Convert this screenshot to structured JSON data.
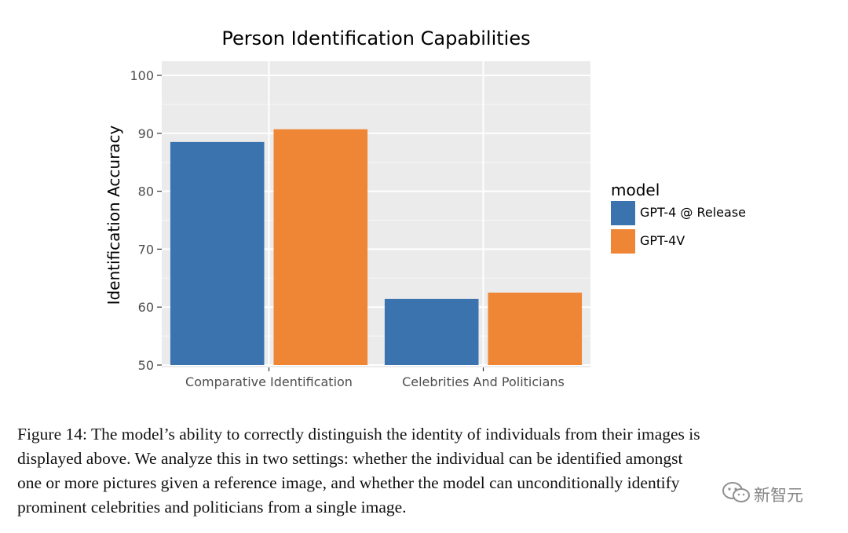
{
  "chart_data": {
    "type": "bar",
    "title": "Person Identification Capabilities",
    "xlabel": "",
    "ylabel": "Identification Accuracy",
    "categories": [
      "Comparative Identification",
      "Celebrities And Politicians"
    ],
    "series": [
      {
        "name": "GPT-4 @ Release",
        "color": "#3b73af",
        "values": [
          88.5,
          61.4
        ]
      },
      {
        "name": "GPT-4V",
        "color": "#ef8636",
        "values": [
          90.7,
          62.5
        ]
      }
    ],
    "ylim": [
      50,
      100
    ],
    "yticks": [
      50,
      60,
      70,
      80,
      90,
      100
    ],
    "grid": true,
    "legend_title": "model",
    "legend_position": "right",
    "panel_background": "#ebebeb"
  },
  "caption": "Figure 14: The model’s ability to correctly distinguish the identity of individuals from their images is\ndisplayed above. We analyze this in two settings: whether the individual can be identified amongst\none or more pictures given a reference image, and whether the model can unconditionally identify\nprominent celebrities and politicians from a single image.",
  "watermark": {
    "icon": "wechat-icon",
    "text": "新智元"
  }
}
